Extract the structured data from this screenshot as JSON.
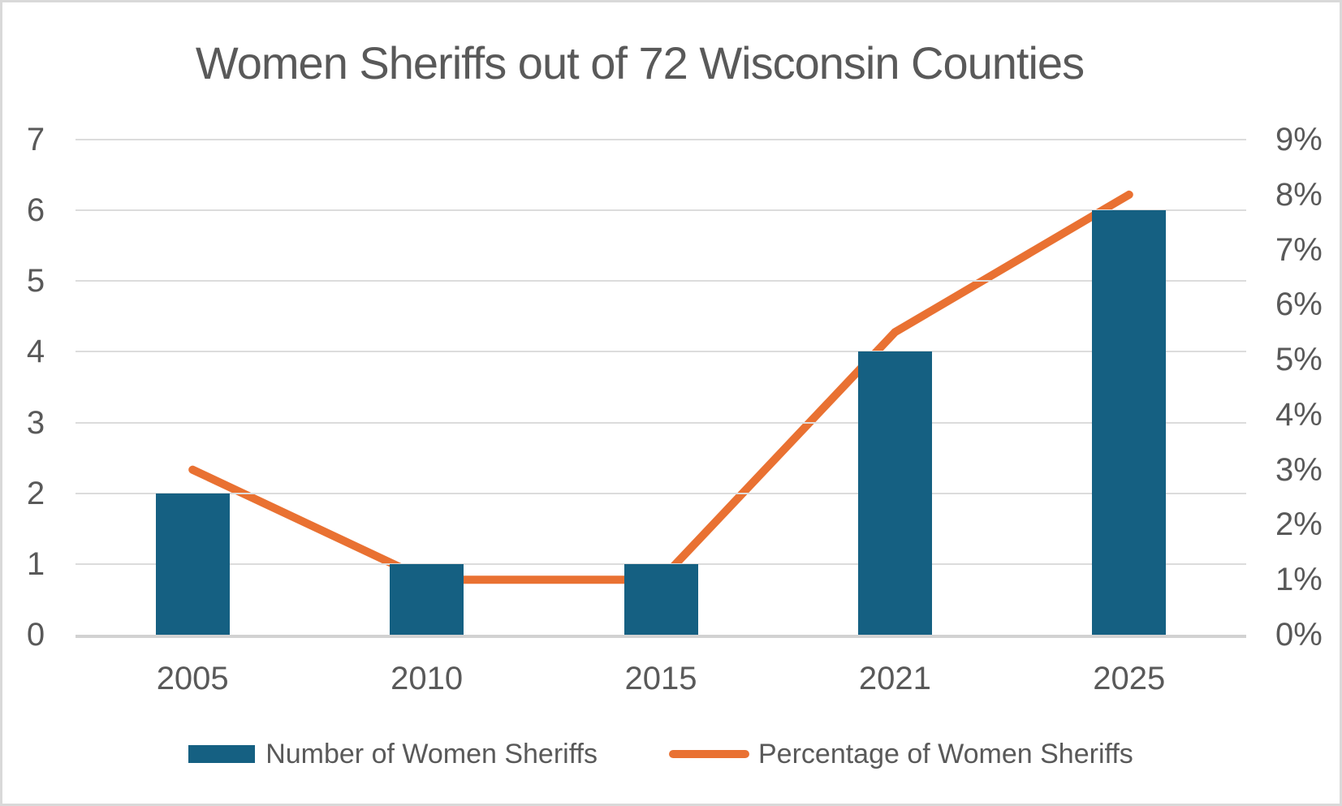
{
  "title": "Women Sheriffs out of 72 Wisconsin Counties",
  "chart_data": {
    "type": "combo-bar-line",
    "title": "Women Sheriffs out of 72 Wisconsin Counties",
    "categories": [
      "2005",
      "2010",
      "2015",
      "2021",
      "2025"
    ],
    "series": [
      {
        "name": "Number of Women Sheriffs",
        "type": "bar",
        "axis": "left",
        "values": [
          2,
          1,
          1,
          4,
          6
        ],
        "color": "#156082"
      },
      {
        "name": "Percentage of Women Sheriffs",
        "type": "line",
        "axis": "right",
        "values": [
          3,
          1,
          1,
          5.5,
          8
        ],
        "unit": "%",
        "color": "#E97132"
      }
    ],
    "left_axis": {
      "min": 0,
      "max": 7,
      "step": 1,
      "tick_labels": [
        "0",
        "1",
        "2",
        "3",
        "4",
        "5",
        "6",
        "7"
      ]
    },
    "right_axis": {
      "min": 0,
      "max": 9,
      "step": 1,
      "tick_labels": [
        "0%",
        "1%",
        "2%",
        "3%",
        "4%",
        "5%",
        "6%",
        "7%",
        "8%",
        "9%"
      ]
    },
    "grid": true,
    "legend_position": "bottom"
  },
  "colors": {
    "bar": "#156082",
    "line": "#E97132",
    "text": "#595959",
    "gridline": "#dcdcdc",
    "axis_baseline": "#d2d2d2",
    "border": "#d9d9d9",
    "background": "#ffffff"
  }
}
